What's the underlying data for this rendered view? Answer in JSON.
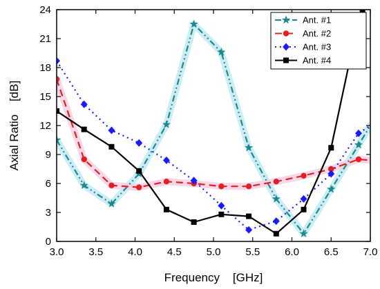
{
  "chart_data": {
    "type": "line",
    "xlabel": "Frequency    [GHz]",
    "ylabel": "Axial Ratio    [dB]",
    "xlim": [
      3.0,
      7.0
    ],
    "ylim": [
      0,
      24
    ],
    "xticks": [
      "3.0",
      "3.5",
      "4.0",
      "4.5",
      "5.0",
      "5.5",
      "6.0",
      "6.5",
      "7.0"
    ],
    "xtick_values": [
      3.0,
      3.5,
      4.0,
      4.5,
      5.0,
      5.5,
      6.0,
      6.5,
      7.0
    ],
    "yticks": [
      "0",
      "3",
      "6",
      "9",
      "12",
      "15",
      "18",
      "21",
      "24"
    ],
    "ytick_values": [
      0,
      3,
      6,
      9,
      12,
      15,
      18,
      21,
      24
    ],
    "legend_position": "top-right",
    "series": [
      {
        "name": "Ant. #1",
        "color": "#1a8a8a",
        "marker": "star",
        "dash": "dash-dot-dot",
        "x": [
          3.0,
          3.35,
          3.7,
          4.05,
          4.4,
          4.75,
          5.1,
          5.45,
          5.8,
          6.15,
          6.5,
          6.85,
          7.0
        ],
        "y": [
          10.5,
          5.8,
          3.9,
          7.0,
          12.1,
          22.5,
          19.6,
          9.7,
          4.4,
          0.8,
          5.4,
          10.0,
          12.0
        ]
      },
      {
        "name": "Ant. #2",
        "color": "#e32020",
        "marker": "circle",
        "dash": "dash",
        "x": [
          3.0,
          3.35,
          3.7,
          4.05,
          4.4,
          4.75,
          5.1,
          5.45,
          5.8,
          6.15,
          6.5,
          6.85,
          7.0
        ],
        "y": [
          16.8,
          8.5,
          5.8,
          5.6,
          6.2,
          6.0,
          5.7,
          5.7,
          6.2,
          6.8,
          7.5,
          8.5,
          8.4
        ]
      },
      {
        "name": "Ant. #3",
        "color": "#1a1aff",
        "marker": "diamond",
        "dash": "dot",
        "x": [
          3.0,
          3.35,
          3.7,
          4.05,
          4.4,
          4.75,
          5.1,
          5.45,
          5.8,
          6.15,
          6.5,
          6.85,
          7.0
        ],
        "y": [
          18.7,
          14.2,
          11.5,
          10.2,
          8.4,
          6.3,
          3.7,
          1.2,
          2.1,
          4.4,
          7.0,
          11.2,
          12.0
        ]
      },
      {
        "name": "Ant. #4",
        "color": "#000000",
        "marker": "square",
        "dash": "solid",
        "x": [
          3.0,
          3.35,
          3.7,
          4.05,
          4.4,
          4.75,
          5.1,
          5.45,
          5.8,
          6.15,
          6.5,
          6.85,
          6.9
        ],
        "y": [
          13.5,
          11.6,
          9.8,
          7.3,
          3.3,
          2.0,
          2.8,
          2.6,
          0.8,
          3.3,
          9.7,
          23.0,
          24.0
        ]
      }
    ]
  }
}
